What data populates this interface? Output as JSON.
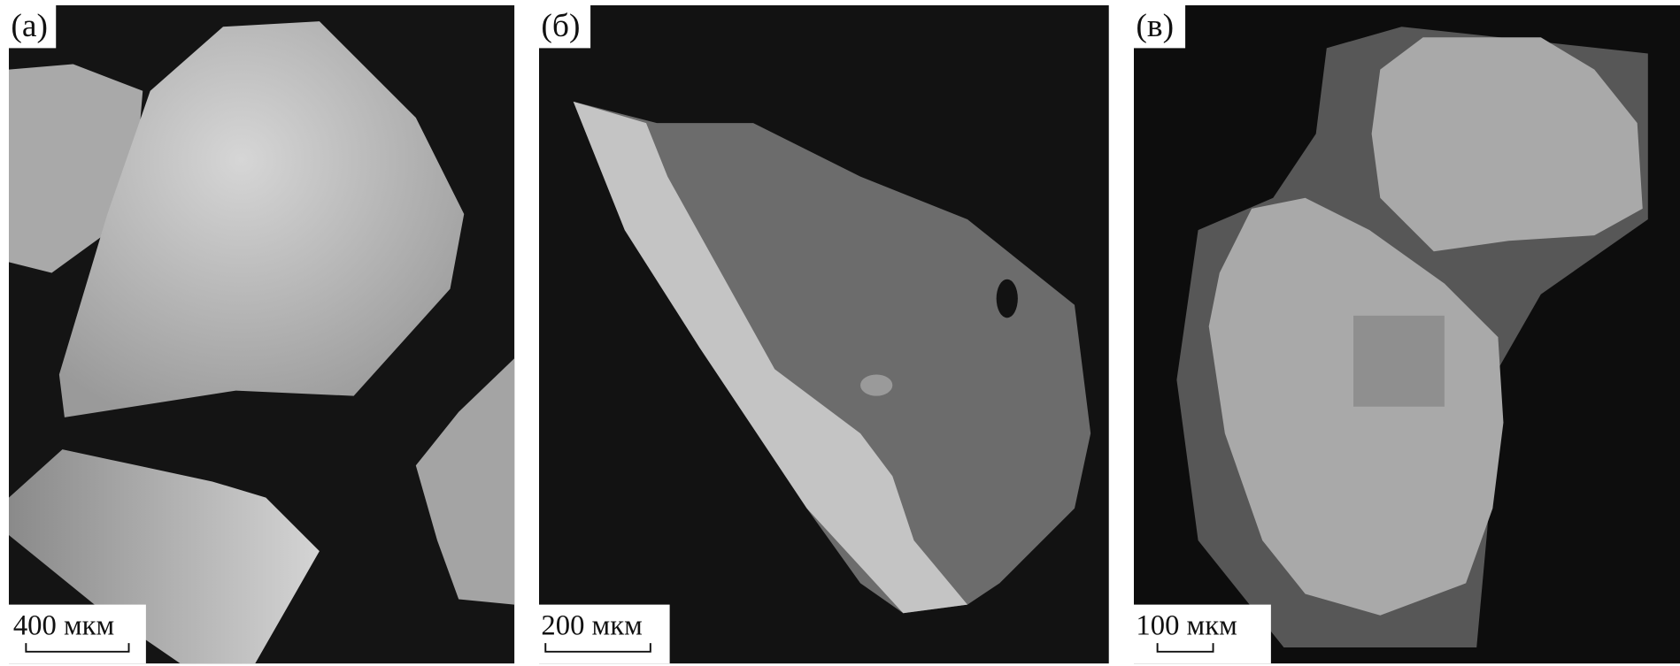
{
  "panels": [
    {
      "label": "(а)",
      "scale_bar": "400 мкм"
    },
    {
      "label": "(б)",
      "scale_bar": "200 мкм"
    },
    {
      "label": "(в)",
      "scale_bar": "100 мкм"
    }
  ]
}
